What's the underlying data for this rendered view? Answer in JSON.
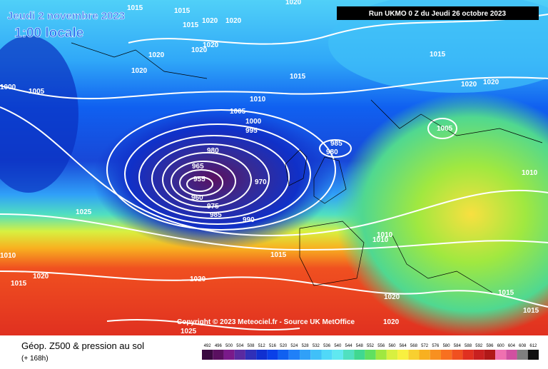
{
  "header": {
    "date": "Jeudi 2 novembre 2023",
    "time": "1:00 locale",
    "run": "Run UKMO 0 Z du Jeudi 26 octobre 2023"
  },
  "isobars": [
    "1015",
    "1015",
    "1015",
    "1020",
    "1020",
    "1020",
    "1020",
    "1020",
    "1020",
    "1020",
    "1015",
    "1015",
    "1020",
    "1020",
    "1000",
    "1005",
    "1010",
    "1005",
    "1000",
    "995",
    "985",
    "980",
    "980",
    "965",
    "955",
    "960",
    "975",
    "970",
    "985",
    "990",
    "1005",
    "1010",
    "1025",
    "1010",
    "1010",
    "1015",
    "1010",
    "1020",
    "1015",
    "1020",
    "1020",
    "1015",
    "1015",
    "1020",
    "1025"
  ],
  "copyright": "Copyright © 2023 Meteociel.fr - Source UK MetOffice",
  "footer": {
    "title": "Géop. Z500 & pression au sol",
    "lead": "(+ 168h)"
  },
  "legend": {
    "values": [
      492,
      496,
      500,
      504,
      508,
      512,
      516,
      520,
      524,
      528,
      532,
      536,
      540,
      544,
      548,
      552,
      556,
      560,
      564,
      568,
      572,
      576,
      580,
      584,
      588,
      592,
      596,
      600,
      604,
      608,
      612
    ],
    "colors": [
      "#3a0a40",
      "#5a1060",
      "#7a1a8a",
      "#5a2aa0",
      "#3030b8",
      "#1030d0",
      "#0a40e8",
      "#1060f0",
      "#2080f8",
      "#30a0f8",
      "#40c0f8",
      "#50d8f8",
      "#60e8f0",
      "#50e0c0",
      "#40d890",
      "#60e060",
      "#a0e840",
      "#d8f040",
      "#f8f040",
      "#f8d030",
      "#f8b020",
      "#f89020",
      "#f87020",
      "#f05020",
      "#e03020",
      "#c82020",
      "#b01818",
      "#f070b0",
      "#d050a0",
      "#808080",
      "#101010"
    ]
  }
}
